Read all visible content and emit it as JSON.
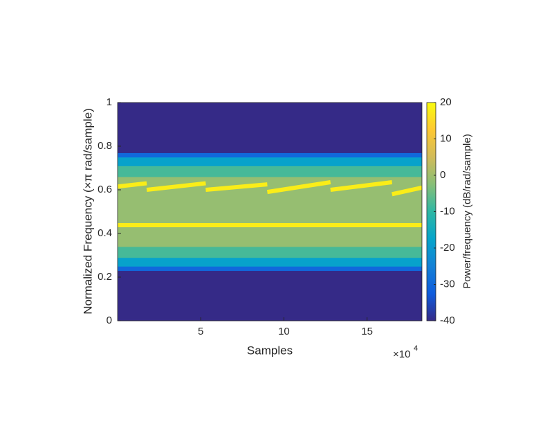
{
  "chart_data": {
    "type": "spectrogram",
    "xlabel": "Samples",
    "ylabel": "Normalized Frequency  (×π rad/sample)",
    "x_multiplier": "×10",
    "x_multiplier_exponent": "4",
    "xlim": [
      0,
      18.3
    ],
    "xticks": [
      5,
      10,
      15
    ],
    "ylim": [
      0,
      1
    ],
    "yticks": [
      0,
      0.2,
      0.4,
      0.6,
      0.8,
      1
    ],
    "colorbar": {
      "label": "Power/frequency (dB/rad/sample)",
      "clim": [
        -40,
        20
      ],
      "ticks": [
        -40,
        -30,
        -20,
        -10,
        0,
        10,
        20
      ],
      "colormap": [
        "#352a87",
        "#0f5cdd",
        "#1481d6",
        "#06a4ca",
        "#2eb7a4",
        "#87bf77",
        "#d1bb59",
        "#fec832",
        "#f9fb0e"
      ]
    },
    "bands": [
      {
        "y": [
          0,
          0.23
        ],
        "db": -40
      },
      {
        "y": [
          0.23,
          0.25
        ],
        "db": -30
      },
      {
        "y": [
          0.25,
          0.29
        ],
        "db": -18
      },
      {
        "y": [
          0.29,
          0.34
        ],
        "db": -8
      },
      {
        "y": [
          0.34,
          0.66
        ],
        "db": -1
      },
      {
        "y": [
          0.66,
          0.71
        ],
        "db": -8
      },
      {
        "y": [
          0.71,
          0.75
        ],
        "db": -18
      },
      {
        "y": [
          0.75,
          0.77
        ],
        "db": -30
      },
      {
        "y": [
          0.77,
          1
        ],
        "db": -40
      }
    ],
    "series": [
      {
        "db": 18,
        "x": [
          0,
          18.3
        ],
        "y": [
          0.438,
          0.438
        ]
      },
      {
        "db": 18,
        "x": [
          0,
          1.75,
          null,
          1.75,
          5.3,
          null,
          5.3,
          9.0,
          null,
          9.0,
          12.8,
          null,
          12.8,
          16.5,
          null,
          16.5,
          18.3
        ],
        "y": [
          0.615,
          0.63,
          null,
          0.6,
          0.63,
          null,
          0.6,
          0.625,
          null,
          0.59,
          0.635,
          null,
          0.6,
          0.635,
          null,
          0.58,
          0.61
        ]
      }
    ]
  }
}
